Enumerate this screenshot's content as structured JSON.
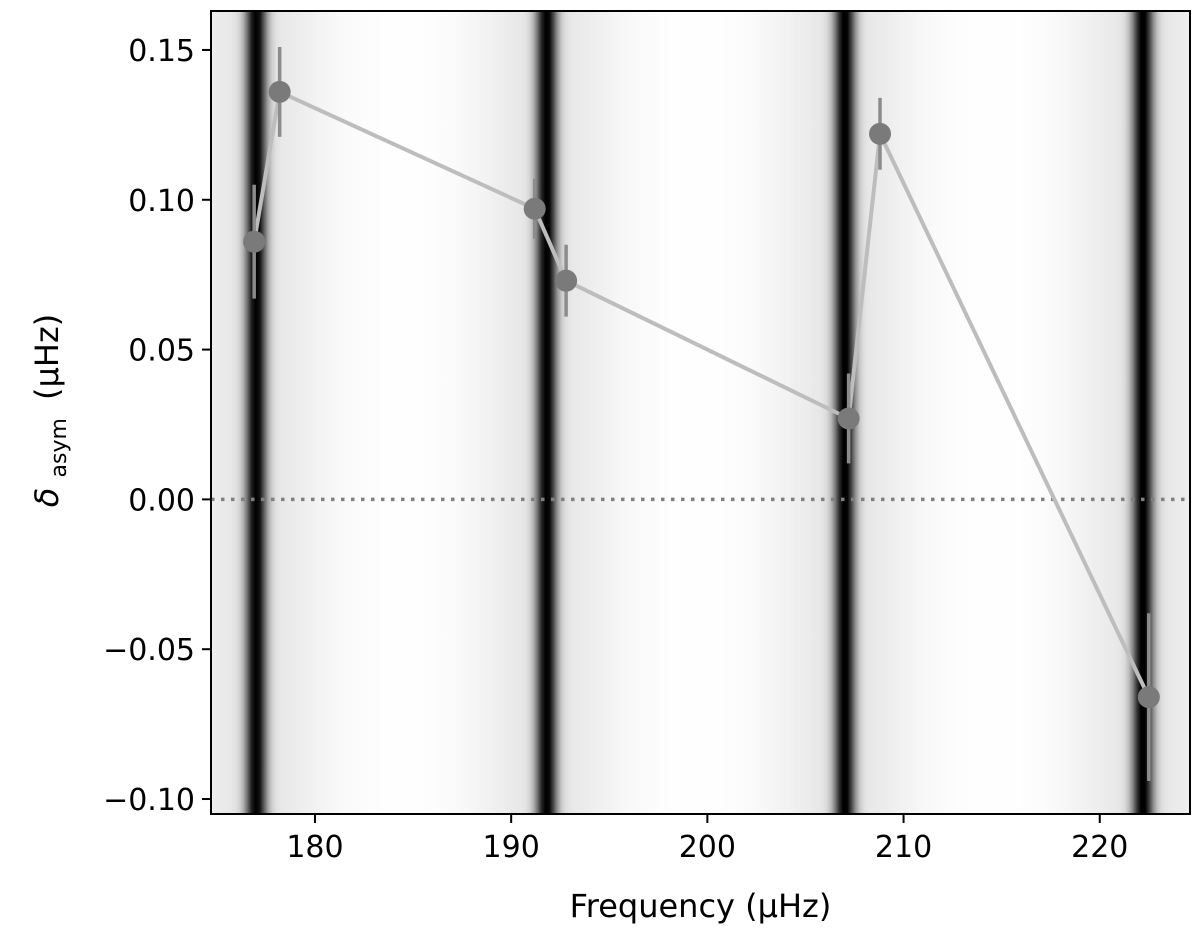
{
  "chart_data": {
    "type": "scatter",
    "xlabel": "Frequency (μHz)",
    "ylabel_symbol": "δ",
    "ylabel_subscript": "asym",
    "ylabel_unit": "(μHz)",
    "xlim": [
      174.7,
      224.6
    ],
    "ylim": [
      -0.105,
      0.163
    ],
    "x_ticks": [
      180,
      190,
      200,
      210,
      220
    ],
    "x_tick_labels": [
      "180",
      "190",
      "200",
      "210",
      "220"
    ],
    "y_ticks": [
      0.15,
      0.1,
      0.05,
      0.0,
      -0.05,
      -0.1
    ],
    "y_tick_labels": [
      "0.15",
      "0.10",
      "0.05",
      "0.00",
      "−0.05",
      "−0.10"
    ],
    "reference_line": {
      "y": 0.0,
      "style": "dotted",
      "color": "#808080"
    },
    "background": {
      "type": "grayscale-density",
      "dark_bands_at_frequency": [
        177.0,
        191.8,
        207.0,
        222.2
      ],
      "colormap": "gray_r"
    },
    "series": [
      {
        "points": [
          {
            "x": 176.9,
            "y": 0.086,
            "yerr": 0.019
          },
          {
            "x": 178.2,
            "y": 0.136,
            "yerr": 0.015
          },
          {
            "x": 191.2,
            "y": 0.097,
            "yerr": 0.01
          },
          {
            "x": 192.8,
            "y": 0.073,
            "yerr": 0.012
          },
          {
            "x": 207.2,
            "y": 0.027,
            "yerr": 0.015
          },
          {
            "x": 208.8,
            "y": 0.122,
            "yerr": 0.012
          },
          {
            "x": 222.5,
            "y": -0.066,
            "yerr": 0.028
          }
        ],
        "line_color": "#bdbdbd",
        "marker_color": "#7a7a7a",
        "errorbar_color": "#8c8c8c"
      }
    ]
  }
}
